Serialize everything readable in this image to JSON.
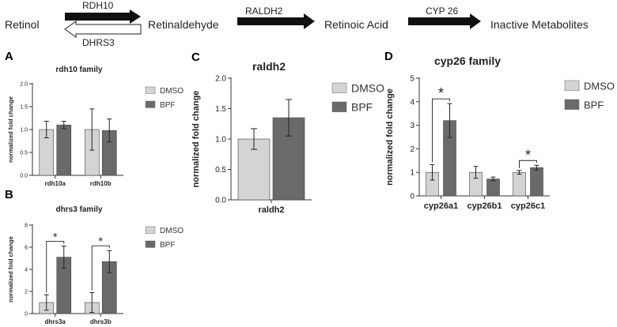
{
  "pathway": {
    "steps": [
      "Retinol",
      "Retinaldehyde",
      "Retinoic Acid",
      "Inactive Metabolites"
    ],
    "enzymes": {
      "forward_1": "RDH10",
      "reverse_1": "DHRS3",
      "forward_2": "RALDH2",
      "forward_3": "CYP 26"
    }
  },
  "colors": {
    "dmso": "#d4d4d4",
    "bpf": "#6a6a6a",
    "axis": "#333333",
    "arrow": "#111111"
  },
  "chart_data": [
    {
      "panel": "A",
      "type": "bar",
      "title": "rdh10 family",
      "ylabel": "normalized fold change",
      "categories": [
        "rdh10a",
        "rdh10b"
      ],
      "series": [
        {
          "name": "DMSO",
          "values": [
            1.0,
            1.0
          ],
          "error": [
            0.18,
            0.45
          ]
        },
        {
          "name": "BPF",
          "values": [
            1.1,
            0.98
          ],
          "error": [
            0.08,
            0.25
          ]
        }
      ],
      "ylim": [
        0,
        2.0
      ],
      "yticks": [
        "0.0",
        "0.5",
        "1.0",
        "1.5",
        "2.0"
      ],
      "legend": "right",
      "significance": []
    },
    {
      "panel": "B",
      "type": "bar",
      "title": "dhrs3 family",
      "ylabel": "normalized fold change",
      "categories": [
        "dhrs3a",
        "dhrs3b"
      ],
      "series": [
        {
          "name": "DMSO",
          "values": [
            1.0,
            1.0
          ],
          "error": [
            0.7,
            0.9
          ]
        },
        {
          "name": "BPF",
          "values": [
            5.1,
            4.7
          ],
          "error": [
            1.0,
            1.0
          ]
        }
      ],
      "ylim": [
        0,
        8
      ],
      "yticks": [
        "0",
        "2",
        "4",
        "6",
        "8"
      ],
      "legend": "right",
      "significance": [
        {
          "category": 0,
          "label": "*"
        },
        {
          "category": 1,
          "label": "*"
        }
      ]
    },
    {
      "panel": "C",
      "type": "bar",
      "title": "raldh2",
      "ylabel": "normalized fold change",
      "categories": [
        "raldh2"
      ],
      "series": [
        {
          "name": "DMSO",
          "values": [
            1.0
          ],
          "error": [
            0.17
          ]
        },
        {
          "name": "BPF",
          "values": [
            1.35
          ],
          "error": [
            0.3
          ]
        }
      ],
      "ylim": [
        0,
        2.0
      ],
      "yticks": [
        "0.0",
        "0.5",
        "1.0",
        "1.5",
        "2.0"
      ],
      "legend": "right",
      "significance": []
    },
    {
      "panel": "D",
      "type": "bar",
      "title": "cyp26 family",
      "ylabel": "normalized fold change",
      "categories": [
        "cyp26a1",
        "cyp26b1",
        "cyp26c1"
      ],
      "series": [
        {
          "name": "DMSO",
          "values": [
            1.0,
            1.0,
            1.0
          ],
          "error": [
            0.33,
            0.25,
            0.08
          ]
        },
        {
          "name": "BPF",
          "values": [
            3.2,
            0.72,
            1.2
          ],
          "error": [
            0.72,
            0.08,
            0.1
          ]
        }
      ],
      "ylim": [
        0,
        5
      ],
      "yticks": [
        "0",
        "1",
        "2",
        "3",
        "4",
        "5"
      ],
      "legend": "right",
      "significance": [
        {
          "category": 0,
          "label": "*"
        },
        {
          "category": 2,
          "label": "*"
        }
      ]
    }
  ]
}
